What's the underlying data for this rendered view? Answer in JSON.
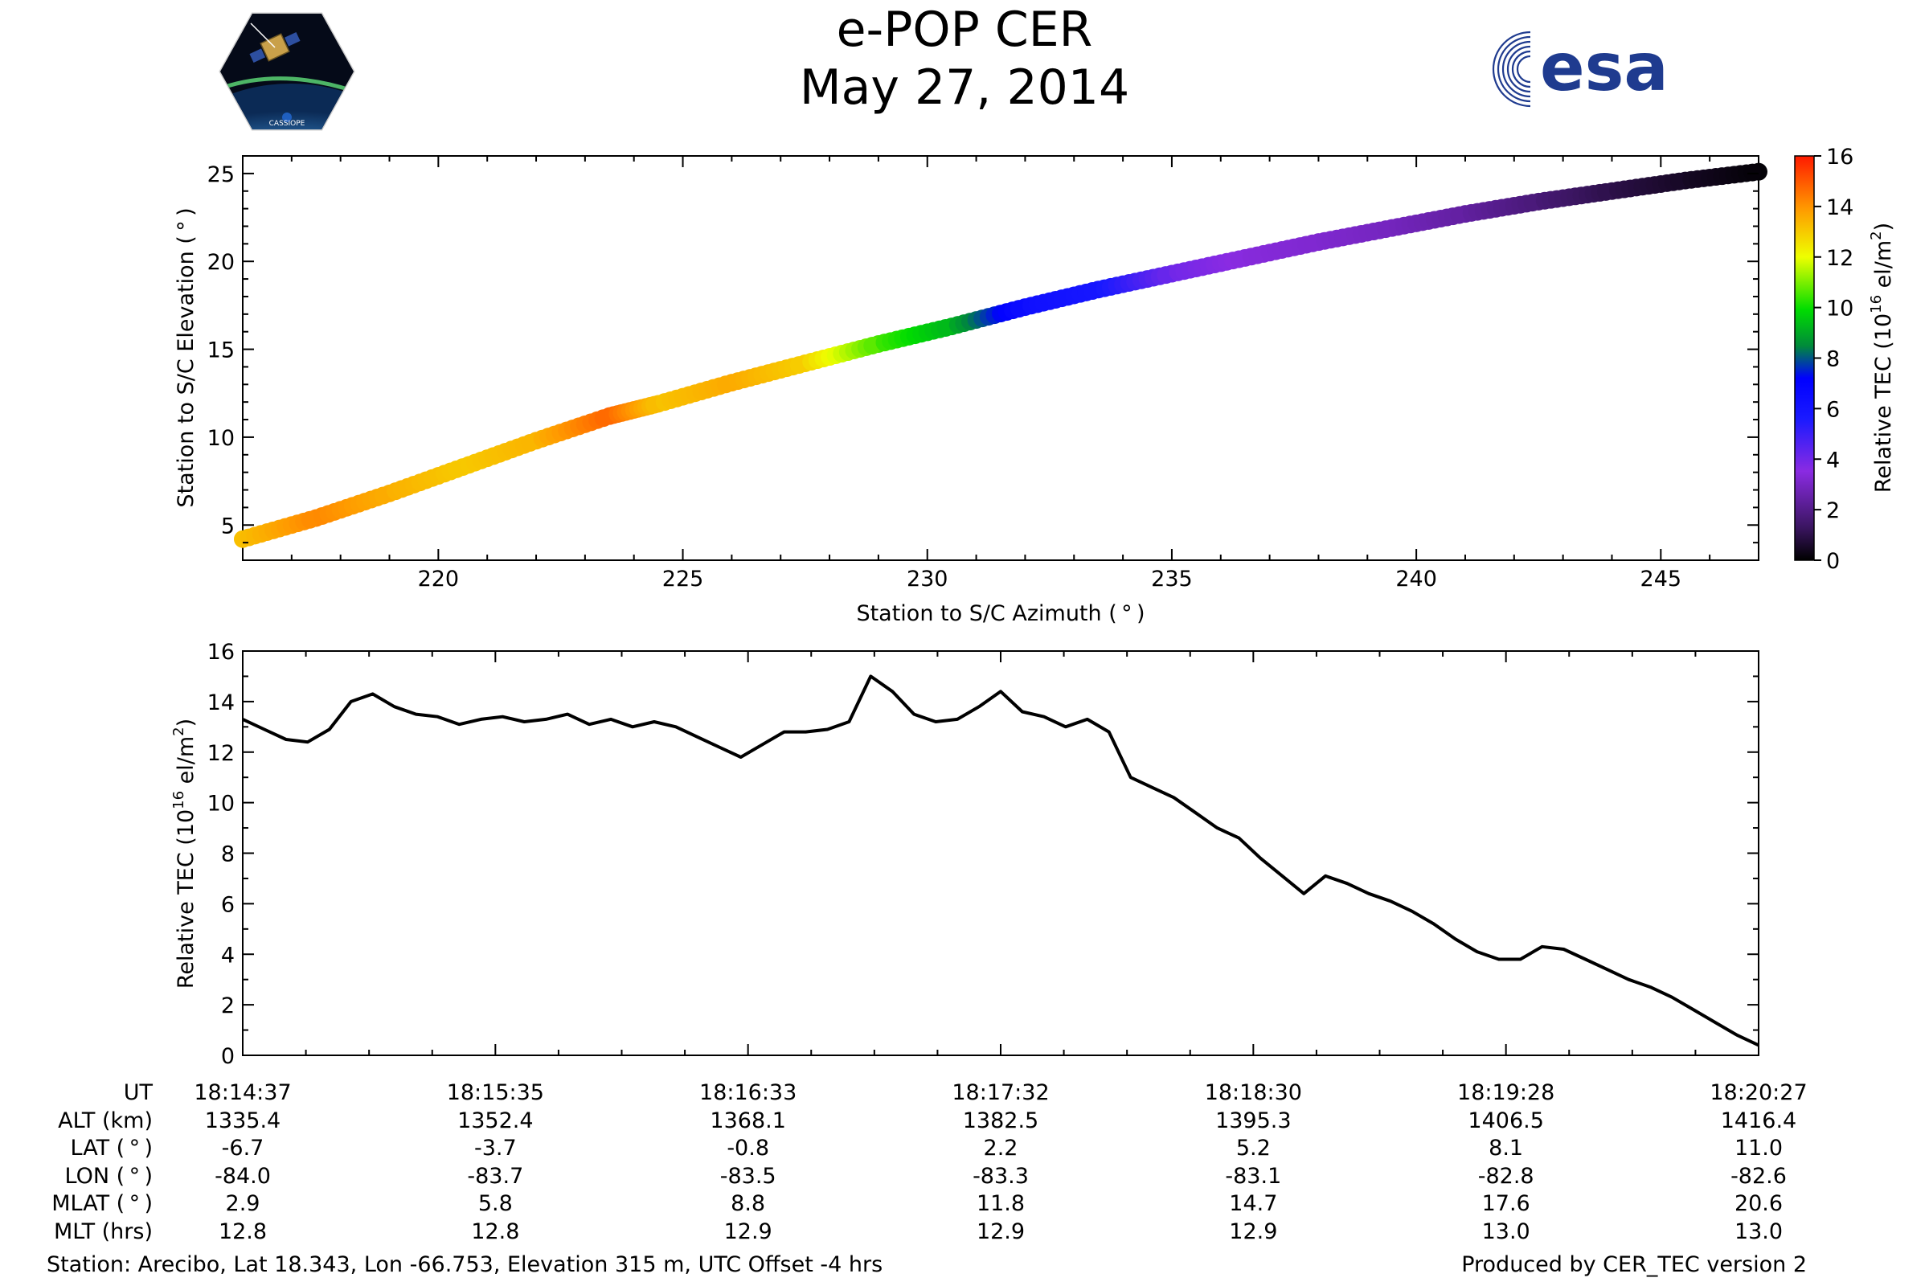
{
  "header": {
    "title": "e-POP CER",
    "date": "May 27, 2014",
    "logo_left_text": "CASSIOPE",
    "logo_right_text": "esa",
    "esa_color": "#1f3b8f"
  },
  "chart_data": [
    {
      "type": "scatter",
      "name": "elevation-vs-azimuth",
      "xlabel": "Station to S/C Azimuth ( ° )",
      "ylabel": "Station to S/C Elevation ( ° )",
      "xlim": [
        216,
        247
      ],
      "ylim": [
        3,
        26
      ],
      "xticks": [
        220,
        225,
        230,
        235,
        240,
        245
      ],
      "yticks": [
        5,
        10,
        15,
        20,
        25
      ],
      "x": [
        216.0,
        217.5,
        219.0,
        220.5,
        222.0,
        223.5,
        224.5,
        226.0,
        227.5,
        229.0,
        230.5,
        232.0,
        233.5,
        235.0,
        236.5,
        238.0,
        239.5,
        241.0,
        242.5,
        244.0,
        245.5,
        247.0
      ],
      "y": [
        4.2,
        5.4,
        6.8,
        8.3,
        9.8,
        11.2,
        11.9,
        13.1,
        14.2,
        15.3,
        16.3,
        17.4,
        18.4,
        19.3,
        20.2,
        21.1,
        21.9,
        22.7,
        23.4,
        24.0,
        24.6,
        25.1
      ],
      "tec": [
        13.2,
        14.2,
        13.5,
        13.0,
        13.4,
        14.8,
        13.1,
        13.6,
        12.9,
        10.5,
        9.2,
        6.3,
        5.8,
        4.0,
        3.4,
        3.2,
        2.9,
        2.4,
        1.7,
        1.0,
        0.5,
        0.1
      ],
      "colorbar": {
        "label": "Relative TEC (10",
        "label_sup": "16",
        "label_mid": " el/m",
        "label_sup2": "2",
        "label_end": ")",
        "range": [
          0,
          16
        ],
        "ticks": [
          0,
          2,
          4,
          6,
          8,
          10,
          12,
          14,
          16
        ]
      }
    },
    {
      "type": "line",
      "name": "tec-vs-time",
      "ylabel": "Relative TEC (10",
      "ylabel_sup": "16",
      "ylabel_mid": " el/m",
      "ylabel_sup2": "2",
      "ylabel_end": ")",
      "ylim": [
        0,
        16
      ],
      "yticks": [
        0,
        2,
        4,
        6,
        8,
        10,
        12,
        14,
        16
      ],
      "xlim": [
        0,
        350
      ],
      "x": [
        0,
        5,
        10,
        15,
        20,
        25,
        30,
        35,
        40,
        45,
        50,
        55,
        60,
        65,
        70,
        75,
        80,
        85,
        90,
        95,
        100,
        105,
        110,
        115,
        120,
        125,
        130,
        135,
        140,
        145,
        150,
        155,
        160,
        165,
        170,
        175,
        180,
        185,
        190,
        195,
        200,
        205,
        210,
        215,
        220,
        225,
        230,
        235,
        240,
        245,
        250,
        255,
        260,
        265,
        270,
        275,
        280,
        285,
        290,
        295,
        300,
        305,
        310,
        315,
        320,
        325,
        330,
        335,
        340,
        345,
        350
      ],
      "values": [
        13.3,
        12.9,
        12.5,
        12.4,
        12.9,
        14.0,
        14.3,
        13.8,
        13.5,
        13.4,
        13.1,
        13.3,
        13.4,
        13.2,
        13.3,
        13.5,
        13.1,
        13.3,
        13.0,
        13.2,
        13.0,
        12.6,
        12.2,
        11.8,
        12.3,
        12.8,
        12.8,
        12.9,
        13.2,
        15.0,
        14.4,
        13.5,
        13.2,
        13.3,
        13.8,
        14.4,
        13.6,
        13.4,
        13.0,
        13.3,
        12.8,
        11.0,
        10.6,
        10.2,
        9.6,
        9.0,
        8.6,
        7.8,
        7.1,
        6.4,
        7.1,
        6.8,
        6.4,
        6.1,
        5.7,
        5.2,
        4.6,
        4.1,
        3.8,
        3.8,
        4.3,
        4.2,
        3.8,
        3.4,
        3.0,
        2.7,
        2.3,
        1.8,
        1.3,
        0.8,
        0.4
      ]
    }
  ],
  "ephemeris": {
    "rows": [
      {
        "label": "UT",
        "values": [
          "18:14:37",
          "18:15:35",
          "18:16:33",
          "18:17:32",
          "18:18:30",
          "18:19:28",
          "18:20:27"
        ]
      },
      {
        "label": "ALT (km)",
        "values": [
          "1335.4",
          "1352.4",
          "1368.1",
          "1382.5",
          "1395.3",
          "1406.5",
          "1416.4"
        ]
      },
      {
        "label": "LAT ( ° )",
        "values": [
          "-6.7",
          "-3.7",
          "-0.8",
          "2.2",
          "5.2",
          "8.1",
          "11.0"
        ]
      },
      {
        "label": "LON ( ° )",
        "values": [
          "-84.0",
          "-83.7",
          "-83.5",
          "-83.3",
          "-83.1",
          "-82.8",
          "-82.6"
        ]
      },
      {
        "label": "MLAT ( ° )",
        "values": [
          "2.9",
          "5.8",
          "8.8",
          "11.8",
          "14.7",
          "17.6",
          "20.6"
        ]
      },
      {
        "label": "MLT (hrs)",
        "values": [
          "12.8",
          "12.8",
          "12.9",
          "12.9",
          "12.9",
          "13.0",
          "13.0"
        ]
      }
    ]
  },
  "footer": {
    "station": "Station: Arecibo, Lat 18.343, Lon -66.753, Elevation 315 m, UTC Offset -4 hrs",
    "produced": "Produced by CER_TEC version 2"
  }
}
